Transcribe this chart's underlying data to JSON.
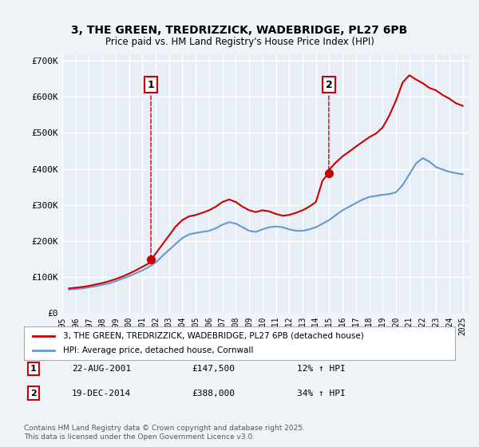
{
  "title_line1": "3, THE GREEN, TREDRIZZICK, WADEBRIDGE, PL27 6PB",
  "title_line2": "Price paid vs. HM Land Registry's House Price Index (HPI)",
  "background_color": "#f0f4f8",
  "plot_background": "#e8eef5",
  "grid_color": "#ffffff",
  "red_color": "#cc0000",
  "blue_color": "#6699cc",
  "ylabel": "",
  "ylim_min": 0,
  "ylim_max": 720000,
  "yticks": [
    0,
    100000,
    200000,
    300000,
    400000,
    500000,
    600000,
    700000
  ],
  "ytick_labels": [
    "£0",
    "£100K",
    "£200K",
    "£300K",
    "£400K",
    "£500K",
    "£600K",
    "£700K"
  ],
  "sale1_year": 2001.64,
  "sale1_price": 147500,
  "sale1_label": "1",
  "sale1_date": "22-AUG-2001",
  "sale1_amount": "£147,500",
  "sale1_hpi": "12% ↑ HPI",
  "sale2_year": 2014.97,
  "sale2_price": 388000,
  "sale2_label": "2",
  "sale2_date": "19-DEC-2014",
  "sale2_amount": "£388,000",
  "sale2_hpi": "34% ↑ HPI",
  "legend_line1": "3, THE GREEN, TREDRIZZICK, WADEBRIDGE, PL27 6PB (detached house)",
  "legend_line2": "HPI: Average price, detached house, Cornwall",
  "footer": "Contains HM Land Registry data © Crown copyright and database right 2025.\nThis data is licensed under the Open Government Licence v3.0.",
  "hpi_years": [
    1995.5,
    1996.0,
    1996.5,
    1997.0,
    1997.5,
    1998.0,
    1998.5,
    1999.0,
    1999.5,
    2000.0,
    2000.5,
    2001.0,
    2001.5,
    2002.0,
    2002.5,
    2003.0,
    2003.5,
    2004.0,
    2004.5,
    2005.0,
    2005.5,
    2006.0,
    2006.5,
    2007.0,
    2007.5,
    2008.0,
    2008.5,
    2009.0,
    2009.5,
    2010.0,
    2010.5,
    2011.0,
    2011.5,
    2012.0,
    2012.5,
    2013.0,
    2013.5,
    2014.0,
    2014.5,
    2015.0,
    2015.5,
    2016.0,
    2016.5,
    2017.0,
    2017.5,
    2018.0,
    2018.5,
    2019.0,
    2019.5,
    2020.0,
    2020.5,
    2021.0,
    2021.5,
    2022.0,
    2022.5,
    2023.0,
    2023.5,
    2024.0,
    2024.5,
    2025.0
  ],
  "hpi_values": [
    65000,
    66000,
    68000,
    71000,
    74000,
    78000,
    82000,
    88000,
    95000,
    102000,
    110000,
    118000,
    128000,
    140000,
    158000,
    175000,
    192000,
    208000,
    218000,
    222000,
    225000,
    228000,
    235000,
    245000,
    252000,
    248000,
    238000,
    228000,
    225000,
    232000,
    238000,
    240000,
    238000,
    232000,
    228000,
    228000,
    232000,
    238000,
    248000,
    258000,
    272000,
    285000,
    295000,
    305000,
    315000,
    322000,
    325000,
    328000,
    330000,
    335000,
    355000,
    385000,
    415000,
    430000,
    420000,
    405000,
    398000,
    392000,
    388000,
    385000
  ],
  "price_years": [
    1995.5,
    1996.0,
    1996.5,
    1997.0,
    1997.5,
    1998.0,
    1998.5,
    1999.0,
    1999.5,
    2000.0,
    2000.5,
    2001.0,
    2001.5,
    2001.64,
    2001.65,
    2002.0,
    2002.5,
    2003.0,
    2003.5,
    2004.0,
    2004.5,
    2005.0,
    2005.5,
    2006.0,
    2006.5,
    2007.0,
    2007.5,
    2008.0,
    2008.5,
    2009.0,
    2009.5,
    2010.0,
    2010.5,
    2011.0,
    2011.5,
    2012.0,
    2012.5,
    2013.0,
    2013.5,
    2014.0,
    2014.5,
    2014.97,
    2014.98,
    2015.0,
    2015.5,
    2016.0,
    2016.5,
    2017.0,
    2017.5,
    2018.0,
    2018.5,
    2019.0,
    2019.5,
    2020.0,
    2020.5,
    2021.0,
    2021.5,
    2022.0,
    2022.5,
    2023.0,
    2023.5,
    2024.0,
    2024.5,
    2025.0
  ],
  "price_values": [
    68000,
    70000,
    72000,
    75000,
    79000,
    83000,
    88000,
    94000,
    101000,
    109000,
    118000,
    128000,
    138000,
    147500,
    147500,
    165000,
    190000,
    215000,
    240000,
    258000,
    268000,
    272000,
    278000,
    285000,
    295000,
    308000,
    315000,
    308000,
    295000,
    285000,
    280000,
    285000,
    282000,
    275000,
    270000,
    272000,
    278000,
    285000,
    295000,
    308000,
    368000,
    388000,
    388000,
    398000,
    418000,
    435000,
    448000,
    462000,
    475000,
    488000,
    498000,
    515000,
    548000,
    590000,
    640000,
    660000,
    648000,
    638000,
    625000,
    618000,
    605000,
    595000,
    582000,
    575000
  ]
}
